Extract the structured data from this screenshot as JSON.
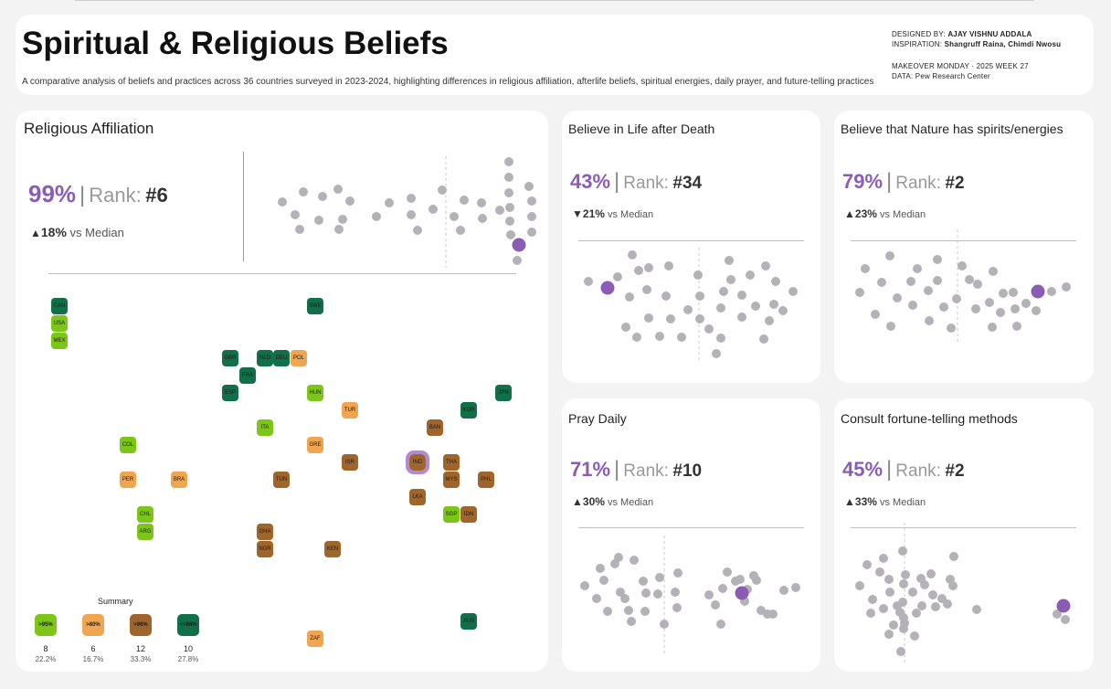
{
  "header": {
    "title": "Spiritual & Religious Beliefs",
    "subtitle": "A comparative analysis of beliefs and practices across 36 countries surveyed in 2023-2024, highlighting differences in religious affiliation, afterlife beliefs, spiritual energies, daily prayer, and future-telling practices",
    "designed_label": "DESIGNED BY:",
    "designed_by": "AJAY VISHNU ADDALA",
    "inspiration_label": "INSPIRATION:",
    "inspiration": "Shangruff Raina, Chimdi Nwosu",
    "makeover": "MAKEOVER MONDAY · 2025 WEEK 27",
    "data_source": "DATA: Pew Research Center"
  },
  "colors": {
    "highlight": "#8a5cb4",
    "dot": "#b4b1b8",
    "green": "#7cc617",
    "orange": "#f0a550",
    "brown": "#a0652a",
    "dark_green": "#11704a"
  },
  "religious_affiliation": {
    "title": "Religious Affiliation",
    "pct": "99%",
    "sep": "|",
    "rank_label": "Rank:",
    "rank": "#6",
    "arrow": "▲",
    "delta": "18%",
    "vs_text": "vs Median"
  },
  "map": {
    "countries": [
      {
        "code": "CAN",
        "cat": "dark"
      },
      {
        "code": "USA",
        "cat": "green"
      },
      {
        "code": "MEX",
        "cat": "green"
      },
      {
        "code": "SWE",
        "cat": "dark"
      },
      {
        "code": "GBR",
        "cat": "dark"
      },
      {
        "code": "NLD",
        "cat": "dark"
      },
      {
        "code": "DEU",
        "cat": "dark"
      },
      {
        "code": "POL",
        "cat": "orange"
      },
      {
        "code": "FRA",
        "cat": "dark"
      },
      {
        "code": "ESP",
        "cat": "dark"
      },
      {
        "code": "HUN",
        "cat": "green"
      },
      {
        "code": "JPN",
        "cat": "dark"
      },
      {
        "code": "TUR",
        "cat": "orange"
      },
      {
        "code": "KOR",
        "cat": "dark"
      },
      {
        "code": "ITA",
        "cat": "green"
      },
      {
        "code": "BAN",
        "cat": "brown"
      },
      {
        "code": "COL",
        "cat": "green"
      },
      {
        "code": "GRE",
        "cat": "orange"
      },
      {
        "code": "ISR",
        "cat": "brown"
      },
      {
        "code": "IND",
        "cat": "brown",
        "highlight": true
      },
      {
        "code": "THA",
        "cat": "brown"
      },
      {
        "code": "PER",
        "cat": "orange"
      },
      {
        "code": "BRA",
        "cat": "orange"
      },
      {
        "code": "TUN",
        "cat": "brown"
      },
      {
        "code": "MYS",
        "cat": "brown"
      },
      {
        "code": "PHL",
        "cat": "brown"
      },
      {
        "code": "LKA",
        "cat": "brown"
      },
      {
        "code": "CHL",
        "cat": "green"
      },
      {
        "code": "SGP",
        "cat": "green"
      },
      {
        "code": "IDN",
        "cat": "brown"
      },
      {
        "code": "ARG",
        "cat": "green"
      },
      {
        "code": "GHA",
        "cat": "brown"
      },
      {
        "code": "NGR",
        "cat": "brown"
      },
      {
        "code": "KEN",
        "cat": "brown"
      },
      {
        "code": "AUS",
        "cat": "dark"
      },
      {
        "code": "ZAF",
        "cat": "orange"
      }
    ],
    "summary": {
      "title": "Summary",
      "items": [
        {
          "label": ">95%",
          "count": "8",
          "pct": "22.2%",
          "cat": "green"
        },
        {
          "label": ">80%",
          "count": "6",
          "pct": "16.7%",
          "cat": "orange"
        },
        {
          "label": ">96%",
          "count": "12",
          "pct": "33.3%",
          "cat": "brown"
        },
        {
          "label": "<=86%",
          "count": "10",
          "pct": "27.8%",
          "cat": "dark"
        }
      ]
    }
  },
  "panels": [
    {
      "title": "Believe in Life after Death",
      "pct": "43%",
      "sep": "|",
      "rank_label": "Rank:",
      "rank": "#34",
      "arrow": "▼",
      "delta": "21%",
      "vs_text": "vs Median"
    },
    {
      "title": "Believe that Nature has spirits/energies",
      "pct": "79%",
      "sep": "|",
      "rank_label": "Rank:",
      "rank": "#2",
      "arrow": "▲",
      "delta": "23%",
      "vs_text": "vs Median"
    },
    {
      "title": "Pray Daily",
      "pct": "71%",
      "sep": "|",
      "rank_label": "Rank:",
      "rank": "#10",
      "arrow": "▲",
      "delta": "30%",
      "vs_text": "vs Median"
    },
    {
      "title": "Consult fortune-telling methods",
      "pct": "45%",
      "sep": "|",
      "rank_label": "Rank:",
      "rank": "#2",
      "arrow": "▲",
      "delta": "33%",
      "vs_text": "vs Median"
    }
  ],
  "chart_data": [
    {
      "type": "scatter",
      "title": "Religious Affiliation",
      "description_of_marks": "beeswarm of 36 countries; highlighted point = India",
      "highlight_value": 99,
      "median_line": true
    },
    {
      "type": "scatter",
      "title": "Believe in Life after Death",
      "highlight_value": 43,
      "median_line": true
    },
    {
      "type": "scatter",
      "title": "Believe that Nature has spirits/energies",
      "highlight_value": 79,
      "median_line": true
    },
    {
      "type": "scatter",
      "title": "Pray Daily",
      "highlight_value": 71,
      "median_line": true
    },
    {
      "type": "scatter",
      "title": "Consult fortune-telling methods",
      "highlight_value": 45,
      "median_line": true
    }
  ]
}
